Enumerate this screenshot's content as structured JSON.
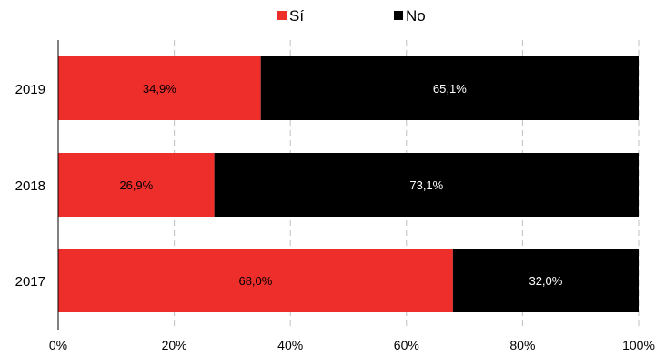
{
  "colors": {
    "si": "#ee2e2a",
    "no": "#000000",
    "grid": "#bfbfbf",
    "axis": "#000000"
  },
  "chart_data": {
    "type": "bar",
    "orientation": "horizontal",
    "stacked": true,
    "percent_stacked": true,
    "title": "",
    "xlabel": "",
    "ylabel": "",
    "categories": [
      "2019",
      "2018",
      "2017"
    ],
    "series": [
      {
        "name": "Sí",
        "values": [
          34.9,
          26.9,
          68.0
        ],
        "labels": [
          "34,9%",
          "26,9%",
          "68,0%"
        ]
      },
      {
        "name": "No",
        "values": [
          65.1,
          73.1,
          32.0
        ],
        "labels": [
          "65,1%",
          "73,1%",
          "32,0%"
        ]
      }
    ],
    "xlim": [
      0,
      100
    ],
    "xticks": [
      "0%",
      "20%",
      "40%",
      "60%",
      "80%",
      "100%"
    ],
    "grid": "vertical dashed",
    "legend_position": "top-center"
  }
}
